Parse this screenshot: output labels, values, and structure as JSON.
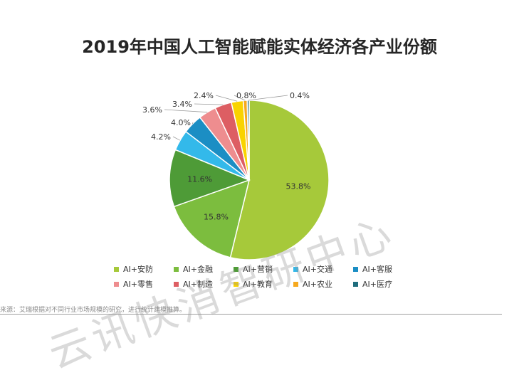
{
  "chart_data": {
    "type": "pie",
    "title": "2019年中国人工智能赋能实体经济各产业份额",
    "slices": [
      {
        "name": "AI+安防",
        "value": 53.8,
        "label": "53.8%",
        "color": "#a6c93a"
      },
      {
        "name": "AI+金融",
        "value": 15.8,
        "label": "15.8%",
        "color": "#7cbd3e"
      },
      {
        "name": "AI+营销",
        "value": 11.6,
        "label": "11.6%",
        "color": "#4e9b37"
      },
      {
        "name": "AI+交通",
        "value": 4.2,
        "label": "4.2%",
        "color": "#33b9ea"
      },
      {
        "name": "AI+客服",
        "value": 4.0,
        "label": "4.0%",
        "color": "#1b8ec4"
      },
      {
        "name": "AI+零售",
        "value": 3.6,
        "label": "3.6%",
        "color": "#ee8d8f"
      },
      {
        "name": "AI+制造",
        "value": 3.4,
        "label": "3.4%",
        "color": "#dd5e63"
      },
      {
        "name": "AI+教育",
        "value": 2.4,
        "label": "2.4%",
        "color": "#f9d300"
      },
      {
        "name": "AI+农业",
        "value": 0.8,
        "label": "0.8%",
        "color": "#f6a91e"
      },
      {
        "name": "AI+医疗",
        "value": 0.4,
        "label": "0.4%",
        "color": "#1f6d7d"
      }
    ],
    "legend_position": "bottom"
  },
  "source_note": "来源：艾瑞根据对不同行业市场规模的研究，进行统计建模推算。",
  "watermark": "云讯快消智研中心"
}
